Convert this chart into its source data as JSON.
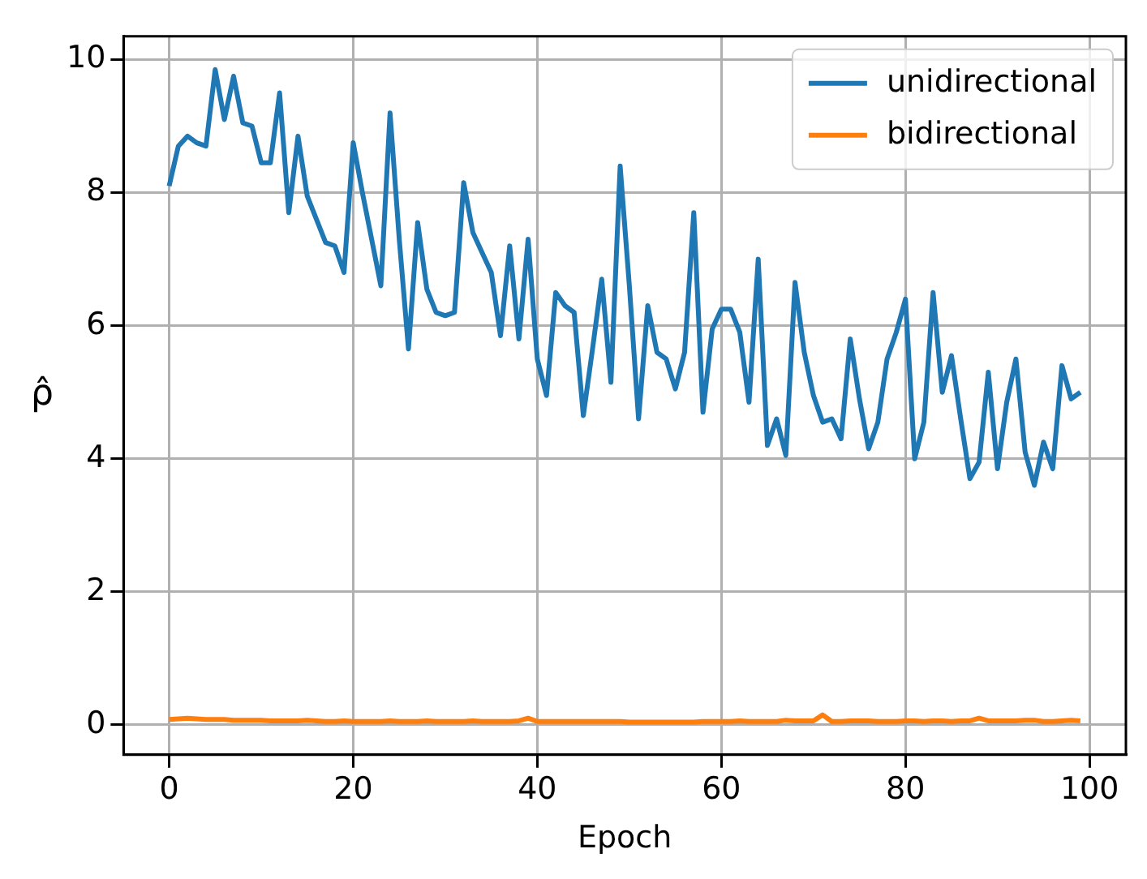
{
  "chart_data": {
    "type": "line",
    "xlabel": "Epoch",
    "ylabel": "ρ̂",
    "x": [
      0,
      1,
      2,
      3,
      4,
      5,
      6,
      7,
      8,
      9,
      10,
      11,
      12,
      13,
      14,
      15,
      16,
      17,
      18,
      19,
      20,
      21,
      22,
      23,
      24,
      25,
      26,
      27,
      28,
      29,
      30,
      31,
      32,
      33,
      34,
      35,
      36,
      37,
      38,
      39,
      40,
      41,
      42,
      43,
      44,
      45,
      46,
      47,
      48,
      49,
      50,
      51,
      52,
      53,
      54,
      55,
      56,
      57,
      58,
      59,
      60,
      61,
      62,
      63,
      64,
      65,
      66,
      67,
      68,
      69,
      70,
      71,
      72,
      73,
      74,
      75,
      76,
      77,
      78,
      79,
      80,
      81,
      82,
      83,
      84,
      85,
      86,
      87,
      88,
      89,
      90,
      91,
      92,
      93,
      94,
      95,
      96,
      97,
      98,
      99
    ],
    "series": [
      {
        "name": "unidirectional",
        "color": "#1f77b4",
        "values": [
          8.1,
          8.7,
          8.85,
          8.75,
          8.7,
          9.85,
          9.1,
          9.75,
          9.05,
          9.0,
          8.45,
          8.45,
          9.5,
          7.7,
          8.85,
          7.95,
          7.6,
          7.25,
          7.2,
          6.8,
          8.75,
          8.0,
          7.3,
          6.6,
          9.2,
          7.3,
          5.65,
          7.55,
          6.55,
          6.2,
          6.15,
          6.2,
          8.15,
          7.4,
          7.1,
          6.8,
          5.85,
          7.2,
          5.8,
          7.3,
          5.5,
          4.95,
          6.5,
          6.3,
          6.2,
          4.65,
          5.65,
          6.7,
          5.15,
          8.4,
          6.6,
          4.6,
          6.3,
          5.6,
          5.5,
          5.05,
          5.6,
          7.7,
          4.7,
          5.95,
          6.25,
          6.25,
          5.9,
          4.85,
          7.0,
          4.2,
          4.6,
          4.05,
          6.65,
          5.6,
          4.95,
          4.55,
          4.6,
          4.3,
          5.8,
          4.9,
          4.15,
          4.55,
          5.5,
          5.9,
          6.4,
          4.0,
          4.55,
          6.5,
          5.0,
          5.55,
          4.6,
          3.7,
          3.95,
          5.3,
          3.85,
          4.85,
          5.5,
          4.1,
          3.6,
          4.25,
          3.85,
          5.4,
          4.9,
          5.0
        ]
      },
      {
        "name": "bidirectional",
        "color": "#ff7f0e",
        "values": [
          0.08,
          0.09,
          0.1,
          0.09,
          0.08,
          0.08,
          0.08,
          0.07,
          0.07,
          0.07,
          0.07,
          0.06,
          0.06,
          0.06,
          0.06,
          0.07,
          0.06,
          0.05,
          0.05,
          0.06,
          0.05,
          0.05,
          0.05,
          0.05,
          0.06,
          0.05,
          0.05,
          0.05,
          0.06,
          0.05,
          0.05,
          0.05,
          0.05,
          0.06,
          0.05,
          0.05,
          0.05,
          0.05,
          0.06,
          0.1,
          0.05,
          0.05,
          0.05,
          0.05,
          0.05,
          0.05,
          0.05,
          0.05,
          0.05,
          0.05,
          0.04,
          0.04,
          0.04,
          0.04,
          0.04,
          0.04,
          0.04,
          0.04,
          0.05,
          0.05,
          0.05,
          0.05,
          0.06,
          0.05,
          0.05,
          0.05,
          0.05,
          0.07,
          0.06,
          0.06,
          0.06,
          0.15,
          0.05,
          0.05,
          0.06,
          0.06,
          0.06,
          0.05,
          0.05,
          0.05,
          0.06,
          0.06,
          0.05,
          0.06,
          0.06,
          0.05,
          0.06,
          0.06,
          0.1,
          0.06,
          0.06,
          0.06,
          0.06,
          0.07,
          0.07,
          0.05,
          0.05,
          0.06,
          0.07,
          0.06
        ]
      }
    ],
    "xlim": [
      -4.95,
      103.95
    ],
    "xticks": [
      0,
      20,
      40,
      60,
      80,
      100
    ],
    "ylim": [
      -0.45,
      10.35
    ],
    "yticks": [
      0,
      2,
      4,
      6,
      8,
      10
    ],
    "grid": true,
    "legend": "top right"
  }
}
